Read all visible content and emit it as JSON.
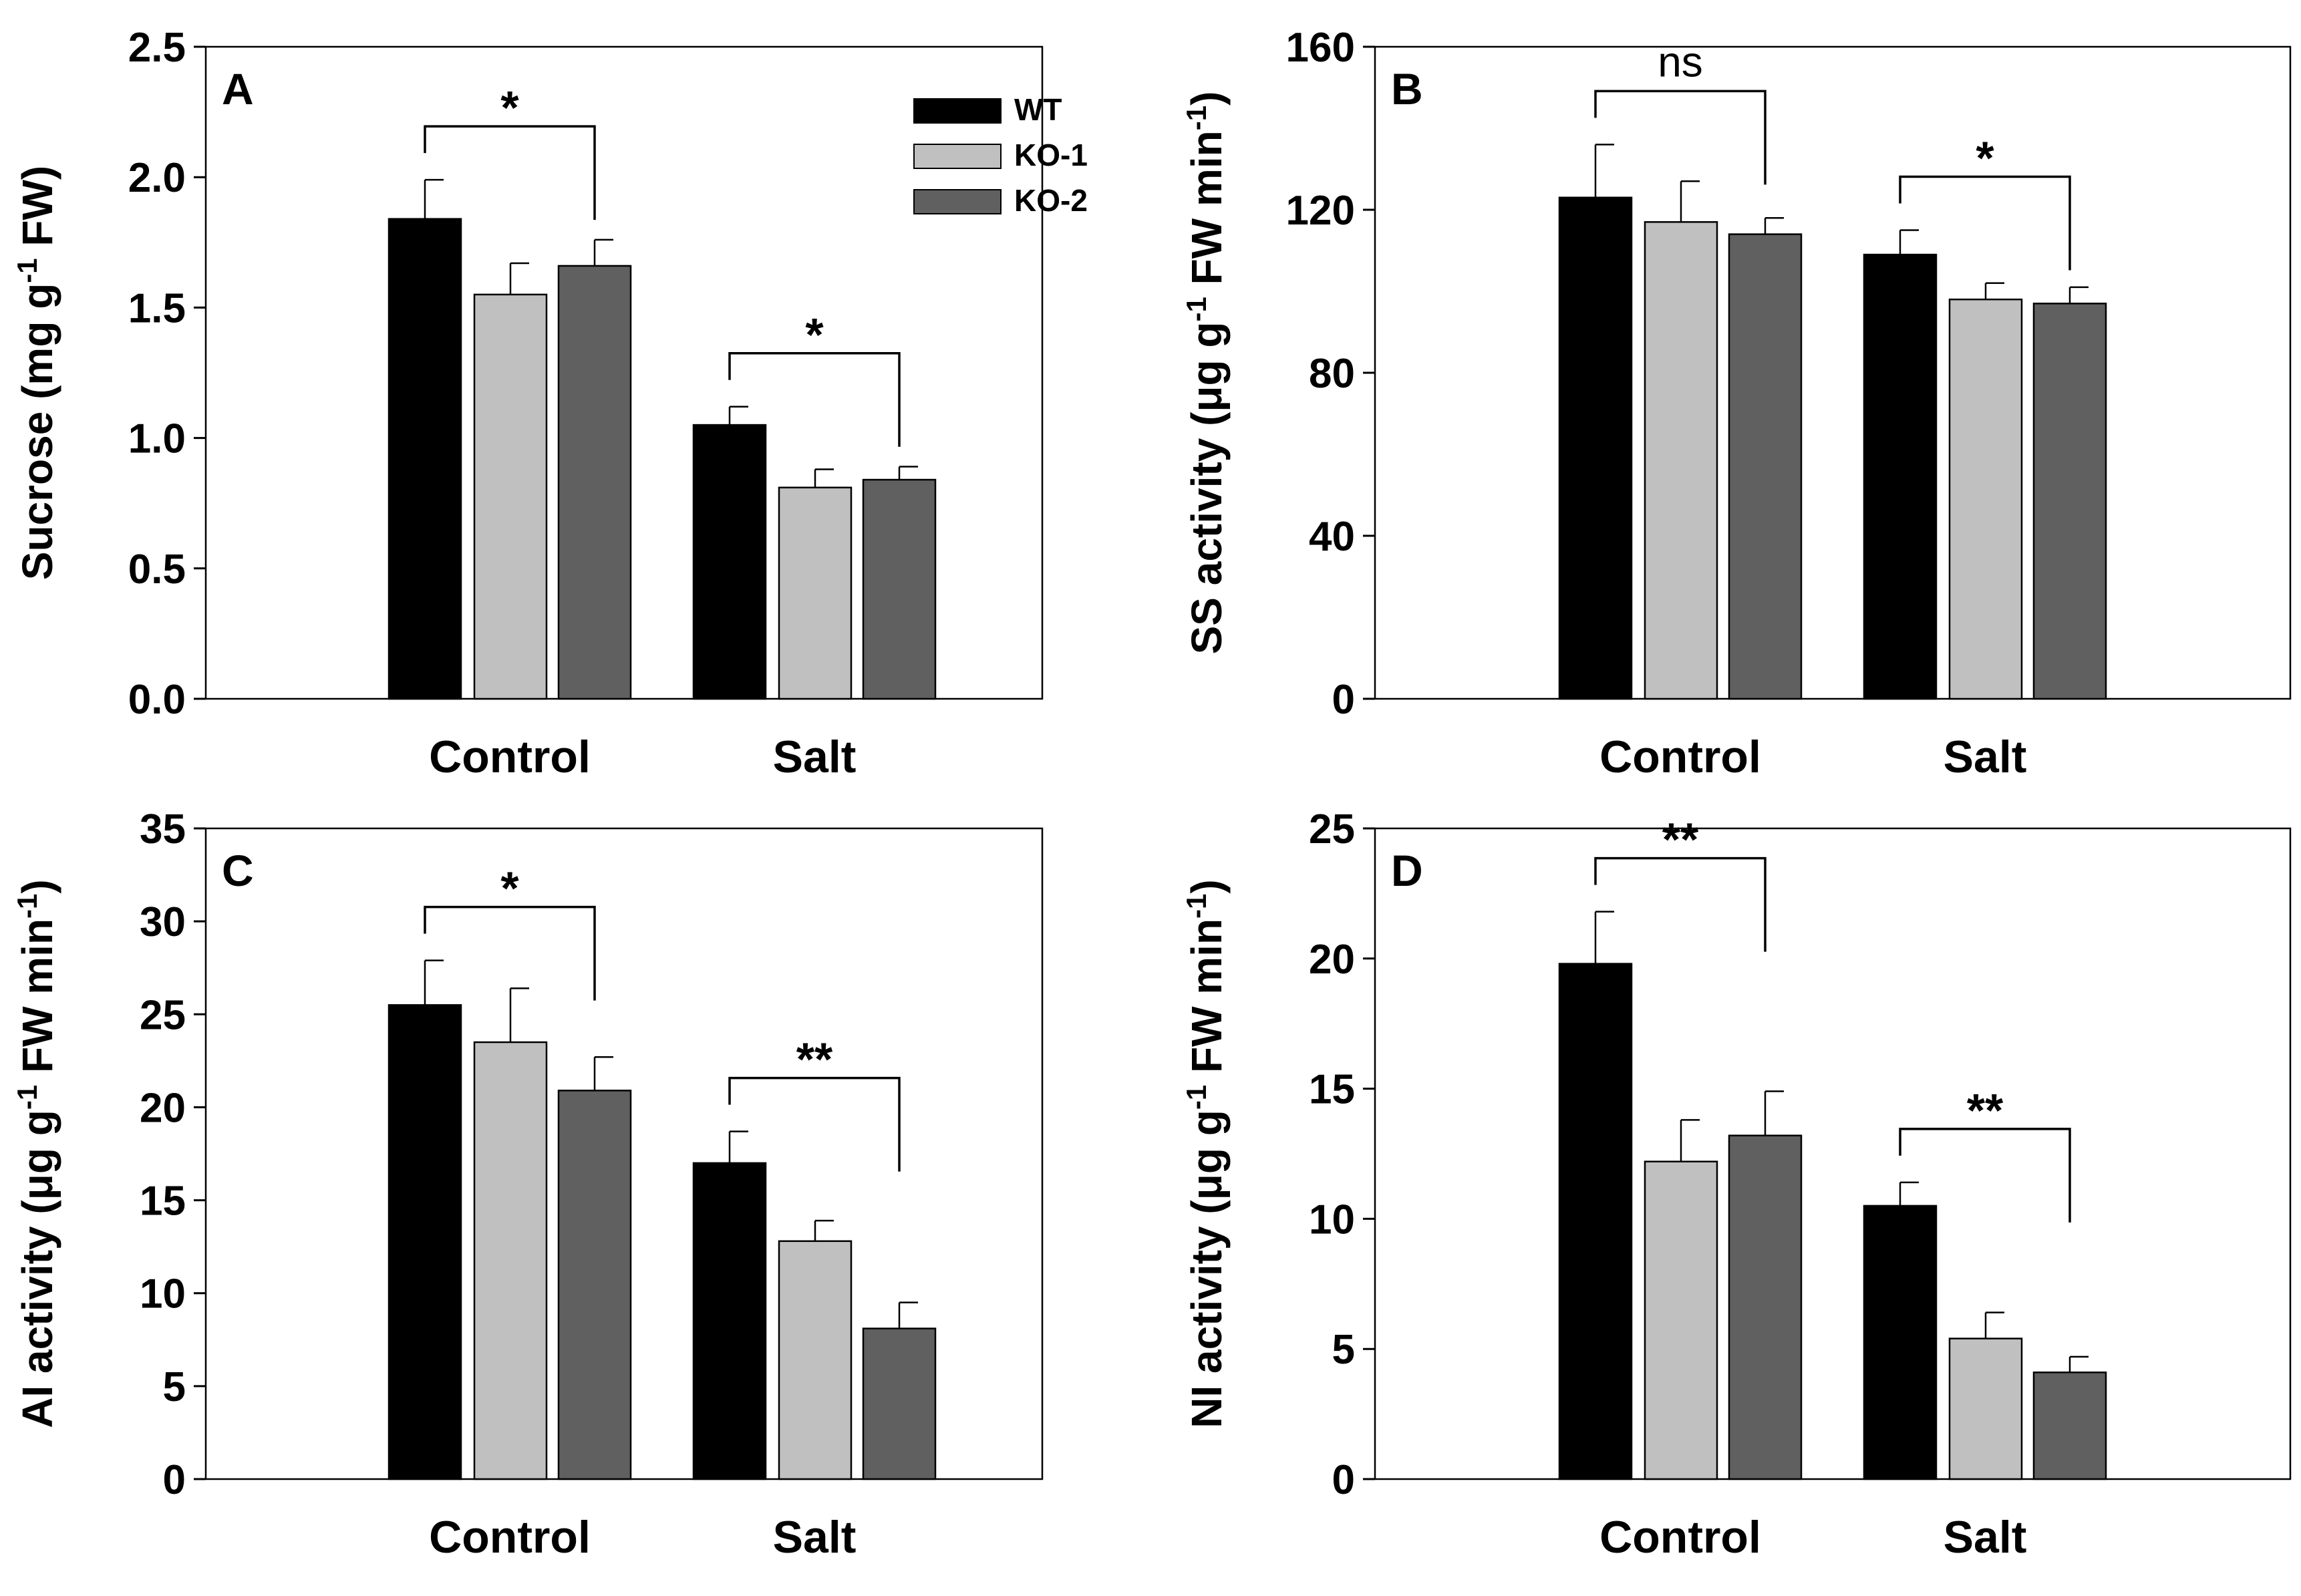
{
  "colors": {
    "WT": "#000000",
    "KO-1": "#c0c0c0",
    "KO-2": "#606060",
    "axis": "#000000",
    "background": "#ffffff"
  },
  "legend": {
    "placement": "top-right of panel A",
    "entries": [
      "WT",
      "KO-1",
      "KO-2"
    ]
  },
  "chart_data": [
    {
      "panel": "A",
      "type": "bar",
      "categories": [
        "Control",
        "Salt"
      ],
      "series": [
        {
          "name": "WT",
          "values": [
            1.84,
            1.05
          ],
          "errors": [
            0.15,
            0.07
          ]
        },
        {
          "name": "KO-1",
          "values": [
            1.55,
            0.81
          ],
          "errors": [
            0.12,
            0.07
          ]
        },
        {
          "name": "KO-2",
          "values": [
            1.66,
            0.84
          ],
          "errors": [
            0.1,
            0.05
          ]
        }
      ],
      "ylabel_pre": "Sucrose (mg g",
      "ylabel_sup": "-1",
      "ylabel_post": " FW)",
      "ylim": [
        0,
        2.5
      ],
      "yticks": [
        "0.0",
        "0.5",
        "1.0",
        "1.5",
        "2.0",
        "2.5"
      ],
      "grid": false,
      "annotations": [
        {
          "category": 0,
          "from": "WT",
          "to": "KO-2",
          "label": "*"
        },
        {
          "category": 1,
          "from": "WT",
          "to": "KO-2",
          "label": "*"
        }
      ]
    },
    {
      "panel": "B",
      "type": "bar",
      "categories": [
        "Control",
        "Salt"
      ],
      "series": [
        {
          "name": "WT",
          "values": [
            123,
            109
          ],
          "errors": [
            13,
            6
          ]
        },
        {
          "name": "KO-1",
          "values": [
            117,
            98
          ],
          "errors": [
            10,
            4
          ]
        },
        {
          "name": "KO-2",
          "values": [
            114,
            97
          ],
          "errors": [
            4,
            4
          ]
        }
      ],
      "ylabel_pre": "SS activity (μg g",
      "ylabel_sup": "-1",
      "ylabel_post": " FW min",
      "ylabel_sup2": "-1",
      "ylabel_end": ")",
      "ylim": [
        0,
        160
      ],
      "yticks": [
        "0",
        "40",
        "80",
        "120",
        "160"
      ],
      "grid": false,
      "annotations": [
        {
          "category": 0,
          "from": "WT",
          "to": "KO-2",
          "label": "ns"
        },
        {
          "category": 1,
          "from": "WT",
          "to": "KO-2",
          "label": "*"
        }
      ]
    },
    {
      "panel": "C",
      "type": "bar",
      "categories": [
        "Control",
        "Salt"
      ],
      "series": [
        {
          "name": "WT",
          "values": [
            25.5,
            17.0
          ],
          "errors": [
            2.4,
            1.7
          ]
        },
        {
          "name": "KO-1",
          "values": [
            23.5,
            12.8
          ],
          "errors": [
            2.9,
            1.1
          ]
        },
        {
          "name": "KO-2",
          "values": [
            20.9,
            8.1
          ],
          "errors": [
            1.8,
            1.4
          ]
        }
      ],
      "ylabel_pre": "AI activity (μg g",
      "ylabel_sup": "-1",
      "ylabel_post": " FW min",
      "ylabel_sup2": "-1",
      "ylabel_end": ")",
      "ylim": [
        0,
        35
      ],
      "yticks": [
        "0",
        "5",
        "10",
        "15",
        "20",
        "25",
        "30",
        "35"
      ],
      "grid": false,
      "annotations": [
        {
          "category": 0,
          "from": "WT",
          "to": "KO-2",
          "label": "*"
        },
        {
          "category": 1,
          "from": "WT",
          "to": "KO-2",
          "label": "**"
        }
      ]
    },
    {
      "panel": "D",
      "type": "bar",
      "categories": [
        "Control",
        "Salt"
      ],
      "series": [
        {
          "name": "WT",
          "values": [
            19.8,
            10.5
          ],
          "errors": [
            2.0,
            0.9
          ]
        },
        {
          "name": "KO-1",
          "values": [
            12.2,
            5.4
          ],
          "errors": [
            1.6,
            1.0
          ]
        },
        {
          "name": "KO-2",
          "values": [
            13.2,
            4.1
          ],
          "errors": [
            1.7,
            0.6
          ]
        }
      ],
      "ylabel_pre": "NI activity (μg g",
      "ylabel_sup": "-1",
      "ylabel_post": " FW min",
      "ylabel_sup2": "-1",
      "ylabel_end": ")",
      "ylim": [
        0,
        25
      ],
      "yticks": [
        "0",
        "5",
        "10",
        "15",
        "20",
        "25"
      ],
      "grid": false,
      "annotations": [
        {
          "category": 0,
          "from": "WT",
          "to": "KO-2",
          "label": "**"
        },
        {
          "category": 1,
          "from": "WT",
          "to": "KO-2",
          "label": "**"
        }
      ]
    }
  ]
}
